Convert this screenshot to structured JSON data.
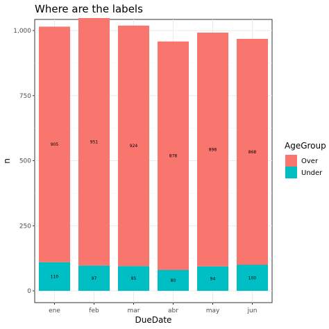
{
  "chart_data": {
    "type": "bar",
    "stacked": true,
    "title": "Where are the labels",
    "xlabel": "DueDate",
    "ylabel": "n",
    "categories": [
      "ene",
      "feb",
      "mar",
      "abr",
      "may",
      "jun"
    ],
    "series": [
      {
        "name": "Under",
        "values": [
          110,
          97,
          95,
          80,
          94,
          100
        ],
        "color": "#00BFC4"
      },
      {
        "name": "Over",
        "values": [
          905,
          951,
          924,
          878,
          898,
          868
        ],
        "color": "#F8766D"
      }
    ],
    "data_labels": {
      "Under": [
        "110",
        "97",
        "95",
        "80",
        "94",
        "100"
      ],
      "Over": [
        "905",
        "951",
        "924",
        "878",
        "898",
        "868"
      ]
    },
    "ylim": [
      0,
      1050
    ],
    "yticks": [
      0,
      250,
      500,
      750,
      1000
    ],
    "ytick_labels": [
      "0",
      "250",
      "500",
      "750",
      "1,000"
    ],
    "grid": true,
    "legend": {
      "title": "AgeGroup",
      "position": "right",
      "entries": [
        "Over",
        "Under"
      ]
    }
  }
}
